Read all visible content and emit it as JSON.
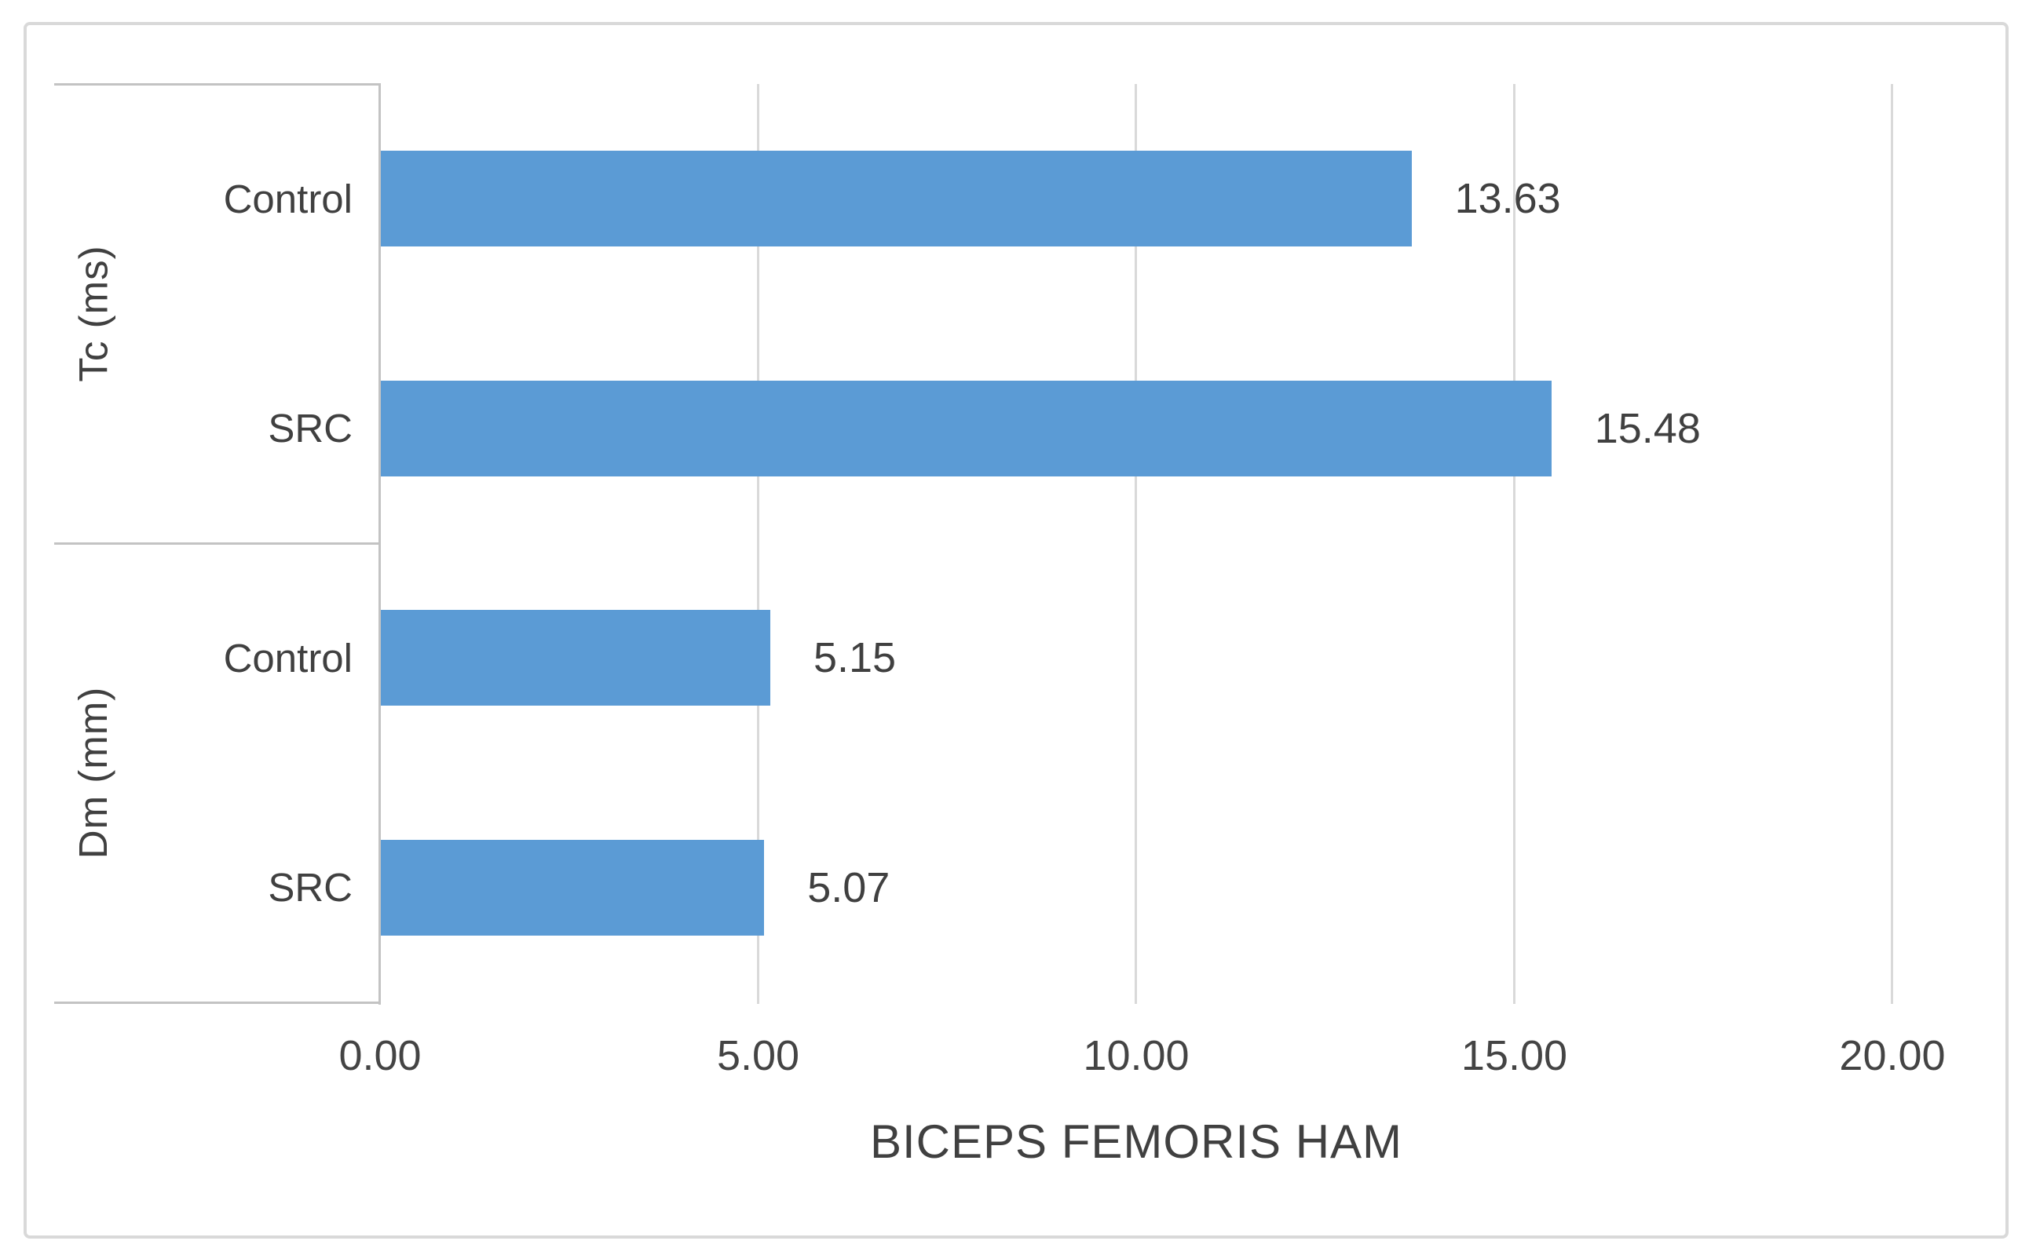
{
  "chart_data": {
    "type": "bar",
    "orientation": "horizontal",
    "title": "",
    "xlabel": "BICEPS FEMORIS HAM",
    "ylabel": "",
    "xlim": [
      0,
      20
    ],
    "grid": "vertical-major-gridlines",
    "legend": "none",
    "bar_color": "#5b9bd5",
    "xticks": [
      {
        "value": 0,
        "label": "0.00"
      },
      {
        "value": 5,
        "label": "5.00"
      },
      {
        "value": 10,
        "label": "10.00"
      },
      {
        "value": 15,
        "label": "15.00"
      },
      {
        "value": 20,
        "label": "20.00"
      }
    ],
    "groups": [
      {
        "label": "Tc (ms)",
        "bars": [
          {
            "category": "Control",
            "value": 13.63,
            "data_label": "13.63"
          },
          {
            "category": "SRC",
            "value": 15.48,
            "data_label": "15.48"
          }
        ]
      },
      {
        "label": "Dm (mm)",
        "bars": [
          {
            "category": "Control",
            "value": 5.15,
            "data_label": "5.15"
          },
          {
            "category": "SRC",
            "value": 5.07,
            "data_label": "5.07"
          }
        ]
      }
    ]
  },
  "styles": {
    "bar_fill": "#5b9bd5",
    "gridline_color": "#d9d9d9",
    "axis_line_color": "#c3c3c3",
    "frame_border_color": "#d9d9d9",
    "text_color": "#404040",
    "background": "#ffffff"
  }
}
